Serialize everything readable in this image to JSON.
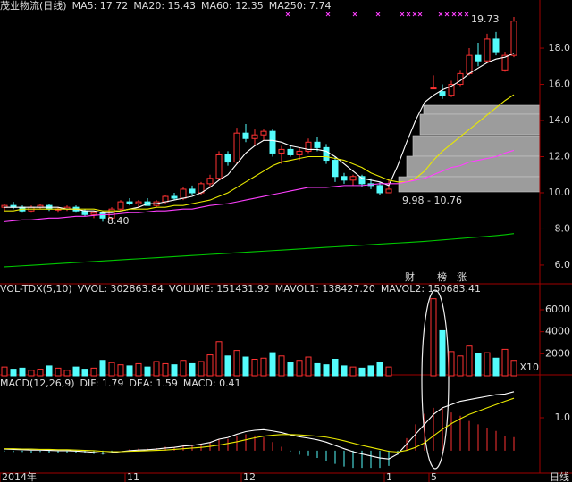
{
  "chart_data": [
    {
      "type": "candlestick",
      "title": "茂业物流(日线)",
      "categories": [
        "2014年",
        null,
        null,
        null,
        null,
        null,
        null,
        null,
        null,
        null,
        null,
        null,
        null,
        null,
        "11",
        null,
        null,
        null,
        null,
        null,
        null,
        null,
        null,
        null,
        null,
        null,
        null,
        "12",
        null,
        null,
        null,
        null,
        null,
        null,
        null,
        null,
        null,
        null,
        null,
        null,
        null,
        null,
        null,
        "1",
        null,
        null,
        null,
        null,
        "5",
        null,
        null,
        null,
        null,
        null,
        null,
        null,
        null,
        null
      ],
      "open": [
        9.2,
        9.3,
        9.2,
        9.0,
        9.2,
        9.3,
        9.1,
        9.1,
        9.2,
        9.0,
        8.8,
        8.9,
        8.6,
        9.1,
        9.5,
        9.4,
        9.5,
        9.3,
        9.5,
        9.8,
        9.7,
        10.2,
        10.0,
        10.5,
        10.8,
        12.1,
        11.7,
        13.3,
        13.0,
        13.2,
        13.4,
        12.2,
        12.4,
        12.1,
        12.3,
        12.8,
        12.5,
        11.8,
        10.9,
        10.7,
        10.9,
        10.5,
        10.4,
        10.0,
        null,
        null,
        null,
        null,
        15.8,
        15.6,
        15.4,
        16.0,
        16.6,
        17.6,
        17.3,
        18.5,
        16.8,
        17.6
      ],
      "high": [
        9.4,
        9.5,
        9.3,
        9.3,
        9.4,
        9.4,
        9.2,
        9.3,
        9.3,
        9.1,
        9.0,
        9.0,
        9.2,
        9.6,
        9.7,
        9.6,
        9.7,
        9.6,
        9.9,
        10.0,
        10.3,
        10.4,
        10.6,
        11.0,
        12.3,
        12.3,
        13.6,
        13.8,
        13.5,
        13.5,
        13.5,
        12.6,
        12.6,
        12.5,
        13.0,
        13.1,
        12.7,
        12.0,
        11.1,
        11.0,
        11.0,
        10.8,
        10.6,
        10.76,
        null,
        null,
        null,
        null,
        16.5,
        16.0,
        16.2,
        16.8,
        18.0,
        18.3,
        18.8,
        18.9,
        17.8,
        19.73
      ],
      "low": [
        9.0,
        9.1,
        8.9,
        8.9,
        9.1,
        9.0,
        8.9,
        9.0,
        8.9,
        8.7,
        8.6,
        8.4,
        8.5,
        9.0,
        9.3,
        9.2,
        9.3,
        9.2,
        9.4,
        9.6,
        9.6,
        9.9,
        9.9,
        10.3,
        10.7,
        11.5,
        11.6,
        12.8,
        12.6,
        12.9,
        12.0,
        11.6,
        12.0,
        11.8,
        12.2,
        12.3,
        11.6,
        10.6,
        10.5,
        10.4,
        10.3,
        10.2,
        9.9,
        9.98,
        null,
        null,
        null,
        null,
        15.8,
        15.2,
        15.3,
        15.9,
        16.5,
        17.0,
        17.2,
        17.6,
        16.7,
        17.5
      ],
      "close": [
        9.3,
        9.2,
        9.0,
        9.2,
        9.3,
        9.1,
        9.1,
        9.2,
        9.0,
        8.8,
        8.9,
        8.6,
        9.1,
        9.5,
        9.4,
        9.5,
        9.3,
        9.5,
        9.8,
        9.7,
        10.2,
        10.0,
        10.5,
        10.8,
        12.1,
        11.7,
        13.3,
        13.0,
        13.2,
        13.4,
        12.2,
        12.4,
        12.1,
        12.3,
        12.8,
        12.5,
        11.8,
        10.9,
        10.7,
        10.9,
        10.5,
        10.4,
        10.0,
        10.2,
        null,
        null,
        null,
        null,
        15.8,
        15.4,
        16.0,
        16.6,
        17.6,
        17.3,
        18.5,
        17.8,
        17.6,
        19.5
      ],
      "up_color": "#ff3232",
      "down_color": "#54fcfc",
      "series": [
        {
          "name": "MA5: 17.72",
          "color": "#ffffff",
          "values": [
            9.2,
            9.2,
            9.2,
            9.2,
            9.2,
            9.2,
            9.2,
            9.1,
            9.1,
            9.0,
            9.0,
            8.9,
            8.9,
            9.0,
            9.1,
            9.2,
            9.4,
            9.4,
            9.5,
            9.6,
            9.7,
            9.8,
            10.0,
            10.3,
            10.7,
            11.0,
            11.6,
            12.2,
            12.6,
            12.9,
            12.9,
            12.8,
            12.6,
            12.5,
            12.4,
            12.4,
            12.3,
            12.0,
            11.6,
            11.2,
            10.8,
            10.7,
            10.6,
            10.4,
            11.5,
            12.8,
            14.0,
            15.0,
            15.4,
            15.7,
            15.9,
            16.2,
            16.6,
            16.9,
            17.2,
            17.4,
            17.5,
            17.72
          ]
        },
        {
          "name": "MA20: 15.43",
          "color": "#e8e800",
          "values": [
            9.0,
            9.0,
            9.1,
            9.1,
            9.1,
            9.1,
            9.1,
            9.1,
            9.1,
            9.1,
            9.1,
            9.0,
            9.0,
            9.0,
            9.1,
            9.1,
            9.1,
            9.2,
            9.2,
            9.3,
            9.3,
            9.4,
            9.5,
            9.6,
            9.8,
            10.0,
            10.3,
            10.6,
            10.9,
            11.2,
            11.5,
            11.7,
            11.8,
            11.9,
            12.0,
            12.0,
            12.0,
            11.9,
            11.8,
            11.6,
            11.4,
            11.1,
            10.9,
            10.7,
            10.6,
            10.6,
            10.8,
            11.2,
            11.8,
            12.3,
            12.7,
            13.1,
            13.5,
            13.9,
            14.3,
            14.7,
            15.1,
            15.43
          ]
        },
        {
          "name": "MA60: 12.35",
          "color": "#ff40ff",
          "values": [
            8.4,
            8.45,
            8.5,
            8.5,
            8.55,
            8.6,
            8.6,
            8.65,
            8.7,
            8.7,
            8.75,
            8.8,
            8.8,
            8.85,
            8.9,
            8.9,
            8.95,
            9.0,
            9.0,
            9.05,
            9.1,
            9.1,
            9.2,
            9.3,
            9.35,
            9.4,
            9.5,
            9.6,
            9.7,
            9.8,
            9.9,
            10.0,
            10.1,
            10.2,
            10.3,
            10.3,
            10.3,
            10.35,
            10.4,
            10.4,
            10.4,
            10.45,
            10.5,
            10.5,
            10.5,
            10.6,
            10.7,
            10.8,
            11.0,
            11.2,
            11.4,
            11.5,
            11.7,
            11.8,
            11.9,
            12.0,
            12.2,
            12.35
          ]
        },
        {
          "name": "MA250: 7.74",
          "color": "#00c800",
          "values": [
            5.9,
            5.93,
            5.96,
            5.99,
            6.02,
            6.05,
            6.08,
            6.11,
            6.14,
            6.17,
            6.2,
            6.23,
            6.26,
            6.29,
            6.32,
            6.35,
            6.38,
            6.41,
            6.44,
            6.47,
            6.5,
            6.53,
            6.56,
            6.59,
            6.62,
            6.65,
            6.68,
            6.71,
            6.74,
            6.77,
            6.8,
            6.83,
            6.86,
            6.89,
            6.92,
            6.95,
            6.98,
            7.01,
            7.04,
            7.07,
            7.1,
            7.13,
            7.16,
            7.19,
            7.22,
            7.25,
            7.28,
            7.31,
            7.35,
            7.39,
            7.43,
            7.47,
            7.51,
            7.55,
            7.59,
            7.63,
            7.68,
            7.74
          ]
        }
      ],
      "ylim": [
        4.96,
        20.67
      ],
      "yticks": [
        {
          "value": 6,
          "label": "6.0"
        },
        {
          "value": 8,
          "label": "8.0"
        },
        {
          "value": 10,
          "label": "10.0"
        },
        {
          "value": 12,
          "label": "12.0"
        },
        {
          "value": 14,
          "label": "14.0"
        },
        {
          "value": 16,
          "label": "16.0"
        },
        {
          "value": 18,
          "label": "18.0"
        }
      ],
      "annotations": [
        "19.73",
        "8.40",
        "9.98 - 10.76",
        "财",
        "榜",
        "涨"
      ]
    },
    {
      "type": "volume",
      "title": "VOL-TDX(5,10)",
      "legend": [
        {
          "name": "VVOL: 302863.84",
          "color": "#ffffff"
        },
        {
          "name": "VOLUME: 151431.92",
          "color": "#e8e800"
        },
        {
          "name": "MAVOL1: 138427.20",
          "color": "#e8e800"
        },
        {
          "name": "MAVOL2: 150683.41",
          "color": "#ff40ff"
        }
      ],
      "values": [
        800,
        600,
        700,
        500,
        600,
        900,
        700,
        500,
        800,
        600,
        700,
        1400,
        1200,
        1000,
        900,
        1100,
        800,
        1300,
        1100,
        1000,
        1400,
        1100,
        1300,
        1900,
        3100,
        1800,
        2300,
        1700,
        1500,
        1600,
        2100,
        1800,
        1200,
        1400,
        1700,
        1100,
        1000,
        1500,
        900,
        800,
        700,
        900,
        1200,
        800,
        null,
        null,
        null,
        null,
        7000,
        4100,
        2200,
        1800,
        2700,
        2000,
        2100,
        1600,
        2400,
        1400
      ],
      "ylim": [
        0,
        8350
      ],
      "yticks": [
        2000,
        4000,
        6000
      ],
      "unit": "X10"
    },
    {
      "type": "macd",
      "title": "MACD(12,26,9)",
      "series": [
        {
          "name": "DIF: 1.79",
          "color": "#ffffff",
          "values": [
            0.05,
            0.04,
            0.03,
            0.02,
            0.02,
            0.01,
            0,
            0,
            -0.01,
            -0.03,
            -0.05,
            -0.08,
            -0.06,
            -0.03,
            0,
            0.02,
            0.03,
            0.05,
            0.08,
            0.1,
            0.14,
            0.16,
            0.2,
            0.25,
            0.35,
            0.4,
            0.5,
            0.58,
            0.62,
            0.64,
            0.6,
            0.55,
            0.48,
            0.42,
            0.38,
            0.33,
            0.26,
            0.16,
            0.06,
            -0.03,
            -0.1,
            -0.16,
            -0.22,
            -0.25,
            -0.1,
            0.2,
            0.5,
            0.8,
            1.1,
            1.3,
            1.4,
            1.5,
            1.55,
            1.6,
            1.65,
            1.7,
            1.72,
            1.79
          ]
        },
        {
          "name": "DEA: 1.59",
          "color": "#e8e800",
          "values": [
            0.06,
            0.06,
            0.05,
            0.05,
            0.04,
            0.04,
            0.03,
            0.03,
            0.02,
            0.01,
            0,
            -0.02,
            -0.03,
            -0.03,
            -0.02,
            -0.01,
            0,
            0.01,
            0.02,
            0.04,
            0.06,
            0.08,
            0.1,
            0.13,
            0.17,
            0.22,
            0.27,
            0.33,
            0.39,
            0.44,
            0.47,
            0.49,
            0.49,
            0.48,
            0.46,
            0.44,
            0.41,
            0.36,
            0.3,
            0.23,
            0.16,
            0.1,
            0.04,
            -0.02,
            -0.04,
            0.01,
            0.1,
            0.24,
            0.45,
            0.65,
            0.82,
            0.97,
            1.1,
            1.2,
            1.3,
            1.4,
            1.5,
            1.59
          ]
        }
      ],
      "bars": {
        "name": "MACD: 0.41",
        "color": "#ff40ff",
        "values": [
          -0.02,
          -0.04,
          -0.04,
          -0.06,
          -0.04,
          -0.06,
          -0.06,
          -0.06,
          -0.06,
          -0.08,
          -0.1,
          -0.12,
          -0.06,
          0,
          0.04,
          0.06,
          0.06,
          0.08,
          0.12,
          0.12,
          0.16,
          0.16,
          0.2,
          0.24,
          0.36,
          0.36,
          0.46,
          0.5,
          0.46,
          0.4,
          0.26,
          0.12,
          -0.02,
          -0.12,
          -0.16,
          -0.22,
          -0.3,
          -0.4,
          -0.48,
          -0.52,
          -0.52,
          -0.52,
          -0.52,
          -0.46,
          -0.12,
          0.38,
          0.8,
          1.12,
          1.3,
          1.3,
          1.16,
          1.06,
          0.9,
          0.8,
          0.7,
          0.6,
          0.44,
          0.41
        ]
      },
      "ylim": [
        -0.68,
        2.3
      ],
      "yticks": [
        {
          "value": 1,
          "label": "1.0"
        }
      ]
    }
  ],
  "x_axis_label": "日线"
}
